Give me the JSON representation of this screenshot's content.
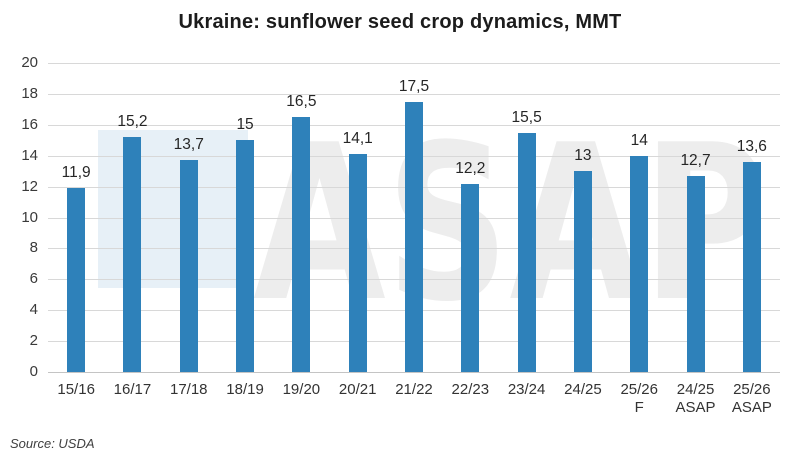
{
  "colors": {
    "bar": "#2e81ba",
    "grid": "#d8d8d8",
    "axis_line": "#c4c4c4",
    "title_text": "#1c1c1c",
    "tick_text": "#3a3a3a",
    "value_text": "#262626",
    "source_text": "#3f3f3f",
    "watermark_gray": "#ededed",
    "watermark_blue": "#e7f0f7",
    "background": "#ffffff"
  },
  "chart_data": {
    "type": "bar",
    "title": "Ukraine: sunflower seed crop dynamics, MMT",
    "categories": [
      "15/16",
      "16/17",
      "17/18",
      "18/19",
      "19/20",
      "20/21",
      "21/22",
      "22/23",
      "23/24",
      "24/25",
      "25/26 F",
      "24/25 ASAP",
      "25/26 ASAP"
    ],
    "category_lines": [
      [
        "15/16"
      ],
      [
        "16/17"
      ],
      [
        "17/18"
      ],
      [
        "18/19"
      ],
      [
        "19/20"
      ],
      [
        "20/21"
      ],
      [
        "21/22"
      ],
      [
        "22/23"
      ],
      [
        "23/24"
      ],
      [
        "24/25"
      ],
      [
        "25/26",
        "F"
      ],
      [
        "24/25",
        "ASAP"
      ],
      [
        "25/26",
        "ASAP"
      ]
    ],
    "values": [
      11.9,
      15.2,
      13.7,
      15,
      16.5,
      14.1,
      17.5,
      12.2,
      15.5,
      13,
      14,
      12.7,
      13.6
    ],
    "value_labels": [
      "11,9",
      "15,2",
      "13,7",
      "15",
      "16,5",
      "14,1",
      "17,5",
      "12,2",
      "15,5",
      "13",
      "14",
      "12,7",
      "13,6"
    ],
    "xlabel": "",
    "ylabel": "",
    "ylim": [
      0,
      20
    ],
    "yticks": [
      0,
      2,
      4,
      6,
      8,
      10,
      12,
      14,
      16,
      18,
      20
    ],
    "ytick_step": 2,
    "grid": true,
    "legend": false,
    "source": "Source: USDA",
    "watermark": "ASAP"
  }
}
